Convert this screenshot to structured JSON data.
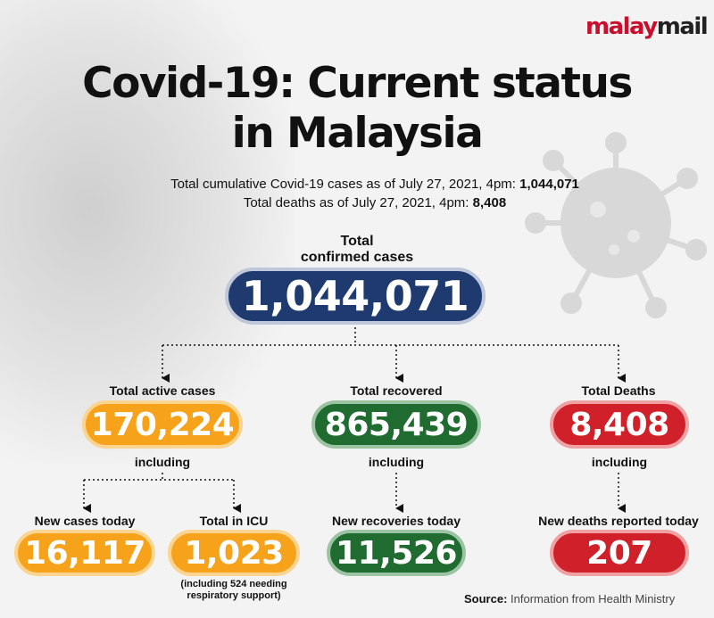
{
  "brand": {
    "part1": "malay",
    "part2": "mail"
  },
  "title": {
    "line1": "Covid-19: Current status",
    "line2": "in Malaysia"
  },
  "summary": {
    "cumulative_label": "Total cumulative Covid-19 cases as of July 27, 2021, 4pm:",
    "cumulative_value": "1,044,071",
    "deaths_label": "Total deaths as of July 27, 2021, 4pm:",
    "deaths_value": "8,408"
  },
  "total": {
    "label_line1": "Total",
    "label_line2": "confirmed cases",
    "value": "1,044,071"
  },
  "active": {
    "label": "Total active cases",
    "value": "170,224",
    "including": "including"
  },
  "recovered": {
    "label": "Total recovered",
    "value": "865,439",
    "including": "including"
  },
  "deaths": {
    "label": "Total Deaths",
    "value": "8,408",
    "including": "including"
  },
  "new_cases": {
    "label": "New cases today",
    "value": "16,117"
  },
  "icu": {
    "label": "Total in ICU",
    "value": "1,023",
    "note_line1": "(including 524 needing",
    "note_line2": "respiratory support)"
  },
  "new_recoveries": {
    "label": "New recoveries today",
    "value": "11,526"
  },
  "new_deaths": {
    "label": "New deaths reported today",
    "value": "207"
  },
  "source": {
    "label": "Source:",
    "text": "Information from Health Ministry"
  },
  "colors": {
    "navy": "#1e3a6e",
    "orange": "#f7a21b",
    "green": "#1f6b30",
    "red": "#d0212a",
    "brand_red": "#c8102e"
  }
}
